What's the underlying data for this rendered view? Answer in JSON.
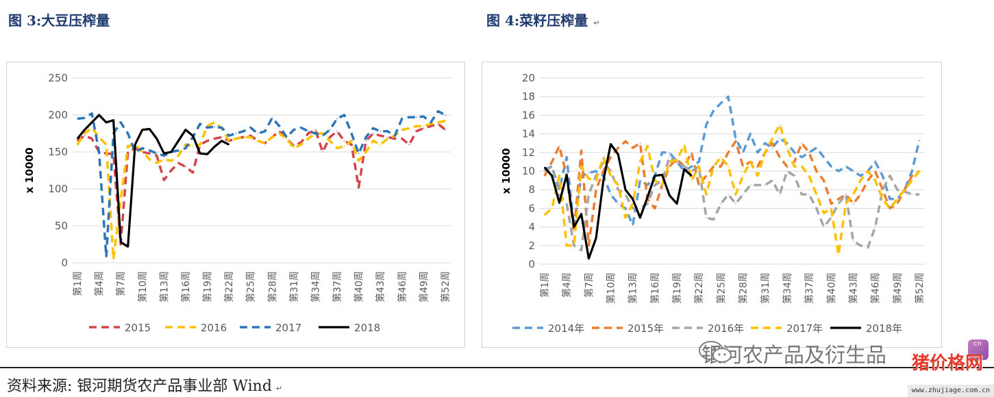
{
  "figures": {
    "left_title": "图 3:大豆压榨量",
    "right_title": "图 4:菜籽压榨量",
    "return_mark": "↵"
  },
  "source": {
    "text": "资料来源: 银河期货农产品事业部  Wind",
    "return_mark": "↵"
  },
  "watermark": {
    "text": "银河农产品及衍生品",
    "icon": "wechat-icon"
  },
  "site_badge": {
    "brand": "猪价格网",
    "url": "www.zhujiage.com.cn",
    "glyph_text": "cn"
  },
  "chart_data": [
    {
      "type": "line",
      "title": "",
      "ylabel": "x 10000",
      "ylim": [
        0,
        250
      ],
      "yticks": [
        0,
        50,
        100,
        150,
        200,
        250
      ],
      "grid": true,
      "legend_position": "bottom",
      "x_count": 52,
      "x_ticks": [
        {
          "week": 1,
          "label": "第1周"
        },
        {
          "week": 4,
          "label": "第4周"
        },
        {
          "week": 7,
          "label": "第7周"
        },
        {
          "week": 10,
          "label": "第10周"
        },
        {
          "week": 13,
          "label": "第13周"
        },
        {
          "week": 16,
          "label": "第16周"
        },
        {
          "week": 19,
          "label": "第19周"
        },
        {
          "week": 22,
          "label": "第22周"
        },
        {
          "week": 25,
          "label": "第25周"
        },
        {
          "week": 28,
          "label": "第28周"
        },
        {
          "week": 31,
          "label": "第31周"
        },
        {
          "week": 34,
          "label": "第34周"
        },
        {
          "week": 37,
          "label": "第37周"
        },
        {
          "week": 40,
          "label": "第40周"
        },
        {
          "week": 43,
          "label": "第43周"
        },
        {
          "week": 46,
          "label": "第46周"
        },
        {
          "week": 49,
          "label": "第49周"
        },
        {
          "week": 52,
          "label": "第52周"
        }
      ],
      "series": [
        {
          "name": "2015",
          "color": "#d0464c",
          "dash": true,
          "values": [
            165,
            172,
            168,
            150,
            148,
            147,
            25,
            150,
            155,
            150,
            148,
            145,
            112,
            125,
            135,
            130,
            122,
            160,
            165,
            168,
            170,
            165,
            168,
            170,
            172,
            165,
            162,
            170,
            178,
            168,
            158,
            163,
            175,
            180,
            150,
            170,
            178,
            165,
            160,
            102,
            165,
            175,
            172,
            170,
            168,
            168,
            160,
            178,
            182,
            185,
            188,
            180
          ]
        },
        {
          "name": "2016",
          "color": "#ffc000",
          "dash": true,
          "values": [
            160,
            175,
            183,
            170,
            160,
            5,
            85,
            158,
            160,
            150,
            140,
            135,
            140,
            138,
            145,
            160,
            158,
            160,
            185,
            190,
            182,
            165,
            168,
            170,
            170,
            165,
            162,
            170,
            175,
            168,
            155,
            160,
            168,
            175,
            175,
            165,
            155,
            158,
            165,
            138,
            150,
            165,
            160,
            168,
            172,
            180,
            182,
            185,
            185,
            188,
            190,
            192
          ]
        },
        {
          "name": "2017",
          "color": "#2e75b6",
          "dash": true,
          "values": [
            195,
            196,
            202,
            150,
            8,
            175,
            190,
            175,
            150,
            155,
            152,
            148,
            145,
            150,
            152,
            155,
            170,
            188,
            183,
            184,
            183,
            172,
            175,
            178,
            183,
            175,
            178,
            196,
            185,
            170,
            180,
            183,
            178,
            175,
            172,
            180,
            195,
            200,
            175,
            148,
            170,
            182,
            178,
            178,
            172,
            195,
            197,
            197,
            198,
            190,
            205,
            200
          ]
        },
        {
          "name": "2018",
          "color": "#000000",
          "dash": false,
          "values": [
            168,
            180,
            190,
            200,
            190,
            193,
            28,
            22,
            160,
            180,
            181,
            168,
            148,
            150,
            165,
            180,
            172,
            148,
            147,
            157,
            165,
            160
          ]
        }
      ]
    },
    {
      "type": "line",
      "title": "",
      "ylabel": "x 10000",
      "ylim": [
        0,
        20
      ],
      "yticks": [
        0,
        2,
        4,
        6,
        8,
        10,
        12,
        14,
        16,
        18,
        20
      ],
      "grid": true,
      "legend_position": "bottom",
      "x_count": 52,
      "x_ticks": [
        {
          "week": 1,
          "label": "第1周"
        },
        {
          "week": 4,
          "label": "第4周"
        },
        {
          "week": 7,
          "label": "第7周"
        },
        {
          "week": 10,
          "label": "第10周"
        },
        {
          "week": 13,
          "label": "第13周"
        },
        {
          "week": 16,
          "label": "第16周"
        },
        {
          "week": 19,
          "label": "第19周"
        },
        {
          "week": 22,
          "label": "第22周"
        },
        {
          "week": 25,
          "label": "第25周"
        },
        {
          "week": 28,
          "label": "第28周"
        },
        {
          "week": 31,
          "label": "第31周"
        },
        {
          "week": 34,
          "label": "第34周"
        },
        {
          "week": 37,
          "label": "第37周"
        },
        {
          "week": 40,
          "label": "第40周"
        },
        {
          "week": 43,
          "label": "第43周"
        },
        {
          "week": 46,
          "label": "第46周"
        },
        {
          "week": 49,
          "label": "第49周"
        },
        {
          "week": 52,
          "label": "第52周"
        }
      ],
      "series": [
        {
          "name": "2014年",
          "color": "#5b9bd5",
          "dash": true,
          "values": [
            10.2,
            10.5,
            8.0,
            11.5,
            4.0,
            9.5,
            9.8,
            10.0,
            9.5,
            7.5,
            6.5,
            6.0,
            4.2,
            9.0,
            8.5,
            9.5,
            12.0,
            12.0,
            11.0,
            10.0,
            10.5,
            11.0,
            15.0,
            16.5,
            17.3,
            18.0,
            13.5,
            12.0,
            14.0,
            12.0,
            13.0,
            12.5,
            13.5,
            13.0,
            12.0,
            11.5,
            12.0,
            12.5,
            11.5,
            10.5,
            10.0,
            10.5,
            10.0,
            9.5,
            10.0,
            11.0,
            9.5,
            7.0,
            7.0,
            8.0,
            10.0,
            13.3
          ]
        },
        {
          "name": "2015年",
          "color": "#ed7d31",
          "dash": true,
          "values": [
            9.5,
            11.0,
            12.7,
            9.5,
            3.5,
            12.2,
            2.0,
            8.0,
            10.0,
            11.5,
            12.5,
            13.2,
            12.5,
            13.0,
            7.0,
            6.0,
            8.5,
            10.5,
            11.3,
            10.5,
            12.0,
            8.5,
            9.5,
            10.5,
            10.5,
            12.0,
            13.2,
            10.5,
            11.0,
            10.5,
            12.0,
            13.0,
            11.5,
            10.5,
            11.0,
            13.0,
            12.0,
            10.0,
            9.0,
            6.5,
            7.0,
            7.5,
            6.5,
            7.5,
            9.0,
            10.0,
            8.0,
            6.0,
            6.5,
            8.0,
            9.5,
            10.0
          ]
        },
        {
          "name": "2016年",
          "color": "#a5a5a5",
          "dash": true,
          "values": [
            10.0,
            10.5,
            7.5,
            6.5,
            2.0,
            1.5,
            7.5,
            9.5,
            11.0,
            10.0,
            8.0,
            7.5,
            6.0,
            6.0,
            6.5,
            8.5,
            9.0,
            11.5,
            11.0,
            10.5,
            10.0,
            10.5,
            5.0,
            4.8,
            6.5,
            7.5,
            6.5,
            7.5,
            8.5,
            8.5,
            8.5,
            9.0,
            7.5,
            10.0,
            9.5,
            7.5,
            7.5,
            6.0,
            4.0,
            5.0,
            6.5,
            7.5,
            2.5,
            2.0,
            1.8,
            4.0,
            8.0,
            9.5,
            8.0,
            7.8,
            7.5,
            7.5
          ]
        },
        {
          "name": "2017年",
          "color": "#ffc000",
          "dash": true,
          "values": [
            5.3,
            6.0,
            9.5,
            2.0,
            2.0,
            10.5,
            9.2,
            9.0,
            11.5,
            9.5,
            8.5,
            5.0,
            6.5,
            11.0,
            12.7,
            9.0,
            8.5,
            11.0,
            11.2,
            12.8,
            9.0,
            10.5,
            7.5,
            10.5,
            11.5,
            10.5,
            7.5,
            9.5,
            11.0,
            9.5,
            12.0,
            13.5,
            15.0,
            12.5,
            10.5,
            10.5,
            9.5,
            7.5,
            5.5,
            6.0,
            1.0,
            6.5,
            7.5,
            9.0,
            10.0,
            9.0,
            7.0,
            6.0,
            7.0,
            8.0,
            9.0,
            10.0
          ]
        },
        {
          "name": "2018年",
          "color": "#000000",
          "dash": false,
          "values": [
            10.4,
            9.5,
            6.6,
            9.6,
            4.0,
            5.4,
            0.6,
            2.8,
            9.0,
            12.9,
            11.8,
            8.0,
            7.0,
            5.0,
            7.2,
            9.5,
            9.6,
            7.4,
            6.5,
            10.2,
            9.5
          ]
        }
      ]
    }
  ]
}
